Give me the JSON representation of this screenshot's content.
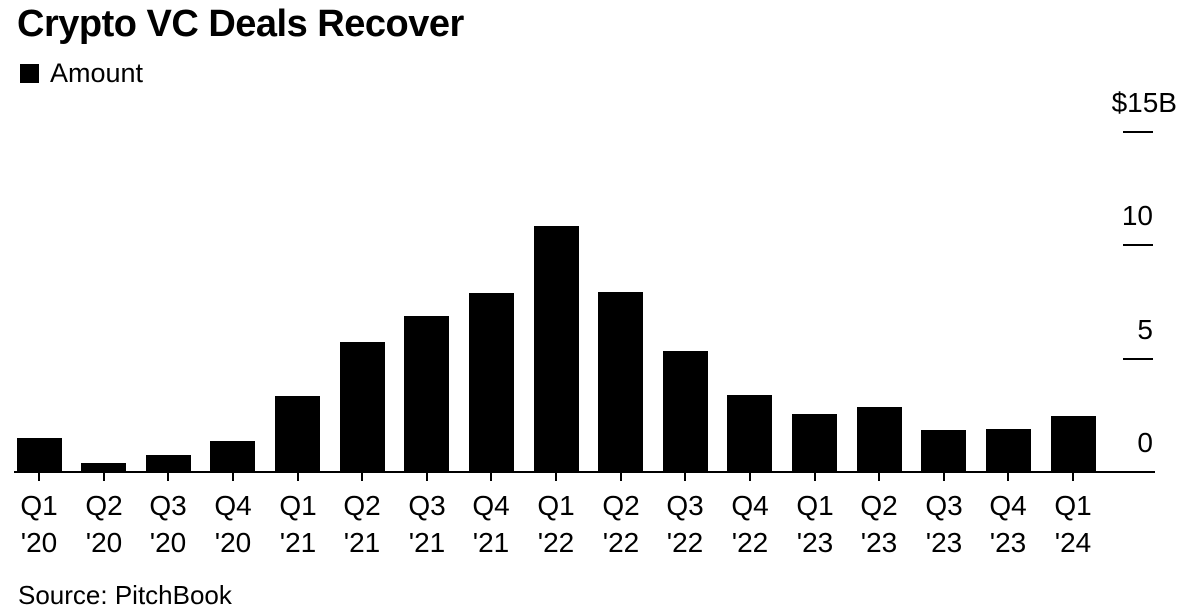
{
  "title": "Crypto VC Deals Recover",
  "legend": {
    "label": "Amount",
    "swatch_color": "#000000"
  },
  "source": "Source: PitchBook",
  "colors": {
    "bar": "#000000",
    "axis": "#000000",
    "text": "#000000",
    "background": "#ffffff"
  },
  "y_axis": {
    "labels": [
      {
        "text": "$15B",
        "value": 15
      },
      {
        "text": "10",
        "value": 10
      },
      {
        "text": "5",
        "value": 5
      },
      {
        "text": "0",
        "value": 0
      }
    ]
  },
  "chart_data": {
    "type": "bar",
    "title": "Crypto VC Deals Recover",
    "series_name": "Amount",
    "unit": "USD billions",
    "categories": [
      "Q1 '20",
      "Q2 '20",
      "Q3 '20",
      "Q4 '20",
      "Q1 '21",
      "Q2 '21",
      "Q3 '21",
      "Q4 '21",
      "Q1 '22",
      "Q2 '22",
      "Q3 '22",
      "Q4 '22",
      "Q1 '23",
      "Q2 '23",
      "Q3 '23",
      "Q4 '23",
      "Q1 '24"
    ],
    "values": [
      1.5,
      0.4,
      0.75,
      1.35,
      3.35,
      5.75,
      6.9,
      7.9,
      10.85,
      7.95,
      5.35,
      3.4,
      2.55,
      2.85,
      1.85,
      1.9,
      2.45
    ],
    "xlabel": "",
    "ylabel": "Amount",
    "ylim": [
      0,
      15
    ],
    "yticks": [
      0,
      5,
      10,
      15
    ],
    "ytick_labels": [
      "0",
      "5",
      "10",
      "$15B"
    ],
    "y_axis_side": "right",
    "grid": false,
    "legend_position": "top-left",
    "source": "Source: PitchBook"
  }
}
